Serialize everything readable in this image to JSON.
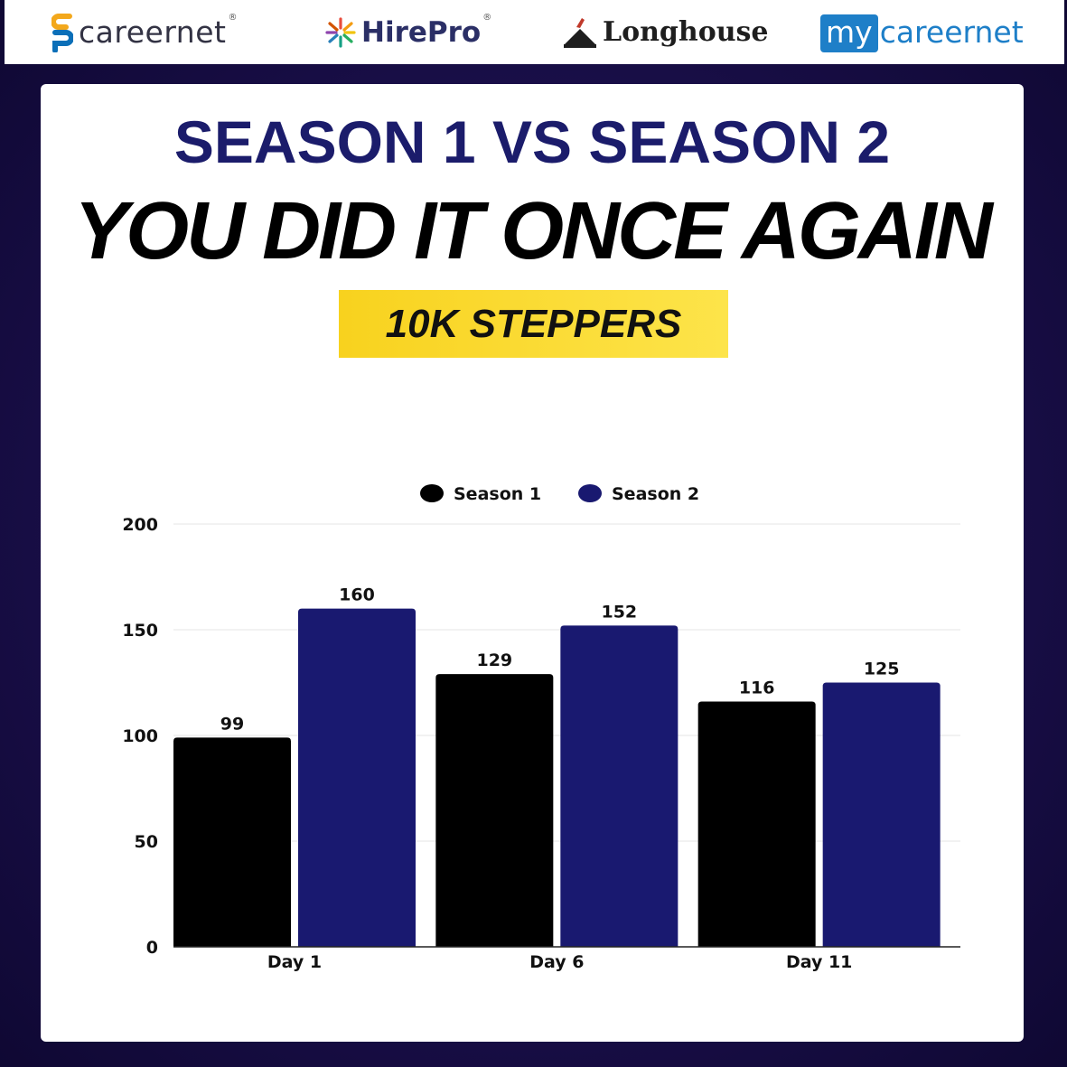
{
  "logos": [
    {
      "name": "careernet",
      "text": "careernet",
      "mark": "®",
      "colors": [
        "#f3a81c",
        "#0b6fb8"
      ]
    },
    {
      "name": "hirepro",
      "text": "HirePro",
      "mark": "®",
      "colors": [
        "#e84c3d",
        "#f39c12",
        "#27ae60",
        "#2980b9",
        "#8e44ad"
      ]
    },
    {
      "name": "longhouse",
      "text": "Longhouse"
    },
    {
      "name": "mycareernet",
      "box_text": "my",
      "text": "careernet",
      "color": "#1e7fc8"
    }
  ],
  "headline": {
    "line1": "SEASON 1 VS SEASON 2",
    "line2": "YOU DID IT ONCE AGAIN",
    "badge": "10K STEPPERS"
  },
  "colors": {
    "season1": "#000000",
    "season2": "#191970",
    "headline1": "#1b1c6b",
    "badge": "#f8d21e",
    "grid": "#e6e6e6"
  },
  "chart_data": {
    "type": "bar",
    "categories": [
      "Day 1",
      "Day 6",
      "Day 11"
    ],
    "series": [
      {
        "name": "Season 1",
        "values": [
          99,
          129,
          116
        ]
      },
      {
        "name": "Season 2",
        "values": [
          160,
          152,
          125
        ]
      }
    ],
    "ylim": [
      0,
      200
    ],
    "yticks": [
      0,
      50,
      100,
      150,
      200
    ],
    "grid": true,
    "legend": "top-center",
    "data_labels": true
  }
}
